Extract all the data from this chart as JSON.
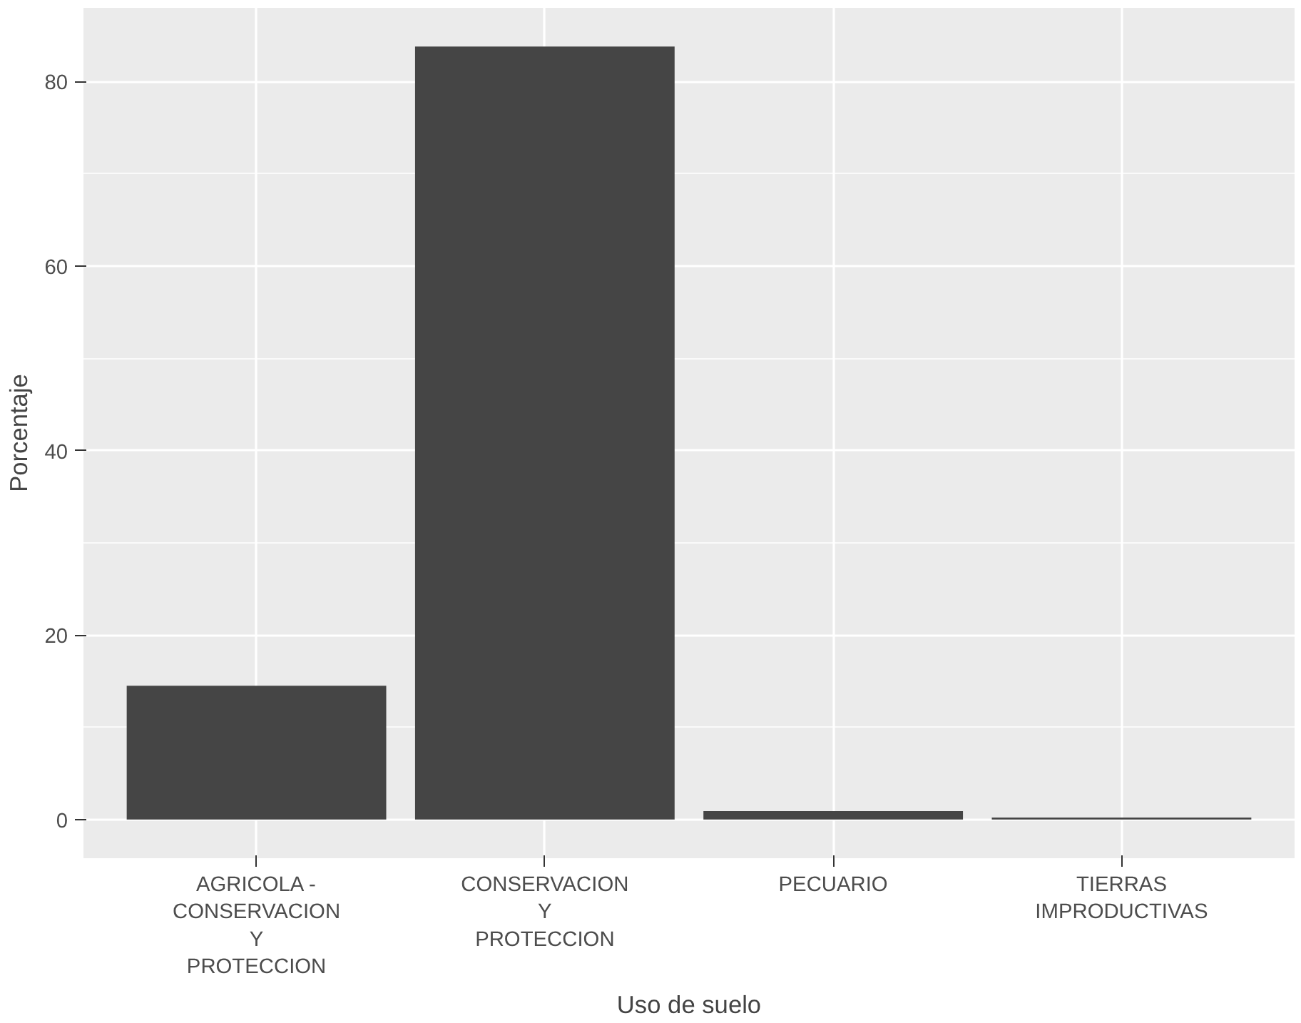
{
  "chart_data": {
    "type": "bar",
    "xlabel": "Uso de suelo",
    "ylabel": "Porcentaje",
    "categories": [
      "AGRICOLA -\nCONSERVACION\nY\nPROTECCION",
      "CONSERVACION\nY\nPROTECCION",
      "PECUARIO",
      "TIERRAS\nIMPRODUCTIVAS"
    ],
    "values": [
      14.5,
      83.8,
      0.9,
      0.2
    ],
    "color": "#454545",
    "ylim": [
      -4.2,
      88
    ],
    "yticks": [
      0,
      20,
      40,
      60,
      80
    ],
    "grid": true
  }
}
